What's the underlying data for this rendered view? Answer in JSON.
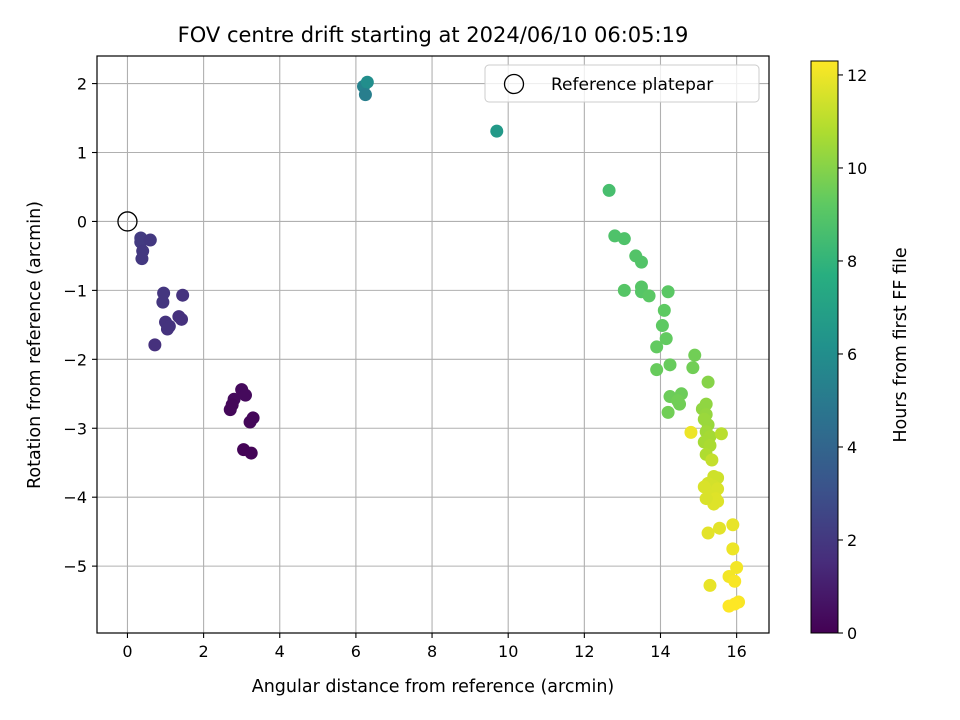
{
  "chart_data": {
    "type": "scatter",
    "title": "FOV centre drift starting at 2024/06/10 06:05:19",
    "xlabel": "Angular distance from reference (arcmin)",
    "ylabel": "Rotation from reference (arcmin)",
    "xlim": [
      -0.8,
      16.85
    ],
    "ylim": [
      -5.97,
      2.4
    ],
    "xticks": [
      0,
      2,
      4,
      6,
      8,
      10,
      12,
      14,
      16
    ],
    "yticks": [
      -5,
      -4,
      -3,
      -2,
      -1,
      0,
      1,
      2
    ],
    "xtick_labels": [
      "0",
      "2",
      "4",
      "6",
      "8",
      "10",
      "12",
      "14",
      "16"
    ],
    "ytick_labels": [
      "−5",
      "−4",
      "−3",
      "−2",
      "−1",
      "0",
      "1",
      "2"
    ],
    "grid": true,
    "legend": {
      "placement": "top-right",
      "entries": [
        {
          "label": "Reference platepar",
          "marker": "open-circle"
        }
      ]
    },
    "reference_point": {
      "x": 0,
      "y": 0
    },
    "colorbar": {
      "label": "Hours from first FF file",
      "range": [
        0,
        12.3
      ],
      "ticks": [
        0,
        2,
        4,
        6,
        8,
        10,
        12
      ],
      "tick_labels": [
        "0",
        "2",
        "4",
        "6",
        "8",
        "10",
        "12"
      ],
      "colormap": "viridis"
    },
    "points": [
      {
        "x": 0.35,
        "y": -0.24,
        "h": 2.1
      },
      {
        "x": 0.35,
        "y": -0.3,
        "h": 2.1
      },
      {
        "x": 0.6,
        "y": -0.27,
        "h": 2.0
      },
      {
        "x": 0.4,
        "y": -0.43,
        "h": 2.0
      },
      {
        "x": 0.38,
        "y": -0.54,
        "h": 2.0
      },
      {
        "x": 0.95,
        "y": -1.04,
        "h": 1.9
      },
      {
        "x": 0.93,
        "y": -1.17,
        "h": 1.9
      },
      {
        "x": 1.45,
        "y": -1.07,
        "h": 1.8
      },
      {
        "x": 1.0,
        "y": -1.46,
        "h": 1.8
      },
      {
        "x": 1.1,
        "y": -1.52,
        "h": 1.8
      },
      {
        "x": 1.05,
        "y": -1.56,
        "h": 1.8
      },
      {
        "x": 1.35,
        "y": -1.38,
        "h": 1.7
      },
      {
        "x": 1.42,
        "y": -1.42,
        "h": 1.7
      },
      {
        "x": 0.72,
        "y": -1.79,
        "h": 1.7
      },
      {
        "x": 3.0,
        "y": -2.44,
        "h": 0.3
      },
      {
        "x": 3.1,
        "y": -2.52,
        "h": 0.3
      },
      {
        "x": 2.8,
        "y": -2.58,
        "h": 0.3
      },
      {
        "x": 2.75,
        "y": -2.66,
        "h": 0.2
      },
      {
        "x": 2.7,
        "y": -2.73,
        "h": 0.2
      },
      {
        "x": 3.3,
        "y": -2.85,
        "h": 0.2
      },
      {
        "x": 3.22,
        "y": -2.91,
        "h": 0.2
      },
      {
        "x": 3.05,
        "y": -3.31,
        "h": 0.1
      },
      {
        "x": 3.25,
        "y": -3.36,
        "h": 0.1
      },
      {
        "x": 6.2,
        "y": 1.96,
        "h": 5.4
      },
      {
        "x": 6.3,
        "y": 2.02,
        "h": 6.0
      },
      {
        "x": 6.25,
        "y": 1.84,
        "h": 5.2
      },
      {
        "x": 9.7,
        "y": 1.31,
        "h": 6.6
      },
      {
        "x": 12.65,
        "y": 0.45,
        "h": 8.6
      },
      {
        "x": 12.8,
        "y": -0.21,
        "h": 8.8
      },
      {
        "x": 13.05,
        "y": -0.25,
        "h": 8.8
      },
      {
        "x": 13.35,
        "y": -0.5,
        "h": 8.9
      },
      {
        "x": 13.5,
        "y": -0.59,
        "h": 8.9
      },
      {
        "x": 13.05,
        "y": -1.0,
        "h": 9.0
      },
      {
        "x": 13.5,
        "y": -0.95,
        "h": 9.0
      },
      {
        "x": 13.5,
        "y": -1.02,
        "h": 9.0
      },
      {
        "x": 13.7,
        "y": -1.08,
        "h": 9.1
      },
      {
        "x": 14.2,
        "y": -1.02,
        "h": 9.1
      },
      {
        "x": 14.1,
        "y": -1.29,
        "h": 9.2
      },
      {
        "x": 14.05,
        "y": -1.51,
        "h": 9.2
      },
      {
        "x": 14.15,
        "y": -1.7,
        "h": 9.3
      },
      {
        "x": 13.9,
        "y": -1.82,
        "h": 9.3
      },
      {
        "x": 14.25,
        "y": -2.08,
        "h": 9.4
      },
      {
        "x": 13.9,
        "y": -2.15,
        "h": 9.4
      },
      {
        "x": 14.9,
        "y": -1.94,
        "h": 9.6
      },
      {
        "x": 14.85,
        "y": -2.12,
        "h": 9.6
      },
      {
        "x": 14.25,
        "y": -2.54,
        "h": 9.5
      },
      {
        "x": 14.55,
        "y": -2.5,
        "h": 9.5
      },
      {
        "x": 14.45,
        "y": -2.6,
        "h": 9.6
      },
      {
        "x": 14.5,
        "y": -2.65,
        "h": 9.6
      },
      {
        "x": 14.2,
        "y": -2.77,
        "h": 9.6
      },
      {
        "x": 15.25,
        "y": -2.33,
        "h": 10.0
      },
      {
        "x": 15.1,
        "y": -2.72,
        "h": 10.2
      },
      {
        "x": 15.2,
        "y": -2.65,
        "h": 10.2
      },
      {
        "x": 15.2,
        "y": -2.8,
        "h": 10.3
      },
      {
        "x": 15.15,
        "y": -2.87,
        "h": 10.4
      },
      {
        "x": 15.25,
        "y": -2.95,
        "h": 10.4
      },
      {
        "x": 15.2,
        "y": -3.05,
        "h": 10.5
      },
      {
        "x": 15.3,
        "y": -3.12,
        "h": 10.6
      },
      {
        "x": 15.15,
        "y": -3.2,
        "h": 10.6
      },
      {
        "x": 15.3,
        "y": -3.25,
        "h": 10.7
      },
      {
        "x": 15.2,
        "y": -3.38,
        "h": 10.8
      },
      {
        "x": 14.8,
        "y": -3.06,
        "h": 12.0
      },
      {
        "x": 15.6,
        "y": -3.08,
        "h": 11.0
      },
      {
        "x": 15.35,
        "y": -3.46,
        "h": 11.2
      },
      {
        "x": 15.4,
        "y": -3.7,
        "h": 11.4
      },
      {
        "x": 15.5,
        "y": -3.72,
        "h": 11.4
      },
      {
        "x": 15.25,
        "y": -3.8,
        "h": 11.5
      },
      {
        "x": 15.4,
        "y": -3.84,
        "h": 11.5
      },
      {
        "x": 15.15,
        "y": -3.85,
        "h": 11.6
      },
      {
        "x": 15.5,
        "y": -3.88,
        "h": 11.6
      },
      {
        "x": 15.3,
        "y": -3.98,
        "h": 11.6
      },
      {
        "x": 15.45,
        "y": -4.02,
        "h": 11.7
      },
      {
        "x": 15.5,
        "y": -4.06,
        "h": 11.7
      },
      {
        "x": 15.4,
        "y": -4.1,
        "h": 11.7
      },
      {
        "x": 15.2,
        "y": -4.02,
        "h": 11.6
      },
      {
        "x": 15.25,
        "y": -4.52,
        "h": 11.8
      },
      {
        "x": 15.55,
        "y": -4.45,
        "h": 11.8
      },
      {
        "x": 15.9,
        "y": -4.4,
        "h": 11.9
      },
      {
        "x": 15.9,
        "y": -4.75,
        "h": 12.0
      },
      {
        "x": 16.0,
        "y": -5.02,
        "h": 12.1
      },
      {
        "x": 15.8,
        "y": -5.15,
        "h": 12.1
      },
      {
        "x": 15.95,
        "y": -5.22,
        "h": 12.2
      },
      {
        "x": 15.3,
        "y": -5.28,
        "h": 11.9
      },
      {
        "x": 16.05,
        "y": -5.52,
        "h": 12.2
      },
      {
        "x": 15.95,
        "y": -5.55,
        "h": 12.3
      },
      {
        "x": 15.8,
        "y": -5.58,
        "h": 12.3
      }
    ]
  }
}
